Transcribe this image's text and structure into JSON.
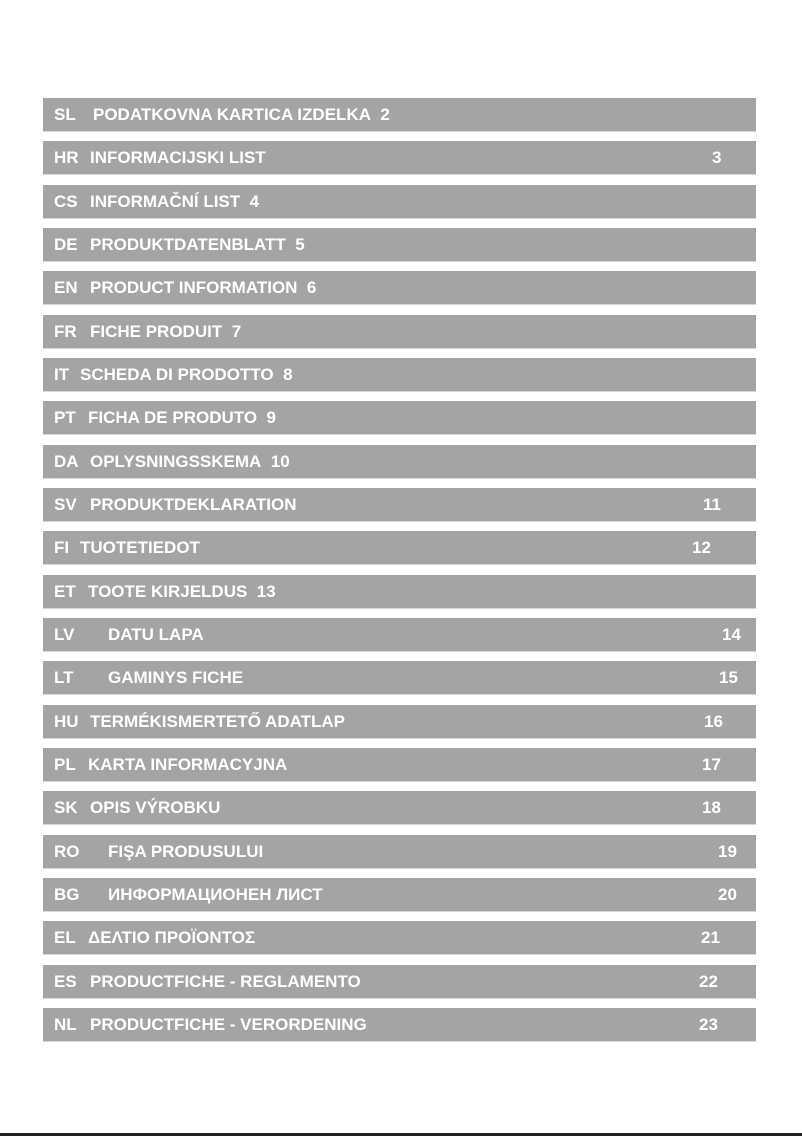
{
  "contents": [
    {
      "code": "SL",
      "title": "PODATKOVNA KARTICA IZDELKA",
      "page": "2"
    },
    {
      "code": "HR",
      "title": "INFORMACIJSKI LIST",
      "page": "3"
    },
    {
      "code": "CS",
      "title": "INFORMAČNÍ LIST",
      "page": "4"
    },
    {
      "code": "DE",
      "title": "PRODUKTDATENBLATT",
      "page": "5"
    },
    {
      "code": "EN",
      "title": "PRODUCT INFORMATION",
      "page": "6"
    },
    {
      "code": "FR",
      "title": "FICHE PRODUIT",
      "page": "7"
    },
    {
      "code": "IT",
      "title": "SCHEDA DI PRODOTTO",
      "page": "8"
    },
    {
      "code": "PT",
      "title": "FICHA DE PRODUTO",
      "page": "9"
    },
    {
      "code": "DA",
      "title": "OPLYSNINGSSKEMA",
      "page": "10"
    },
    {
      "code": "SV",
      "title": "PRODUKTDEKLARATION",
      "page": "11"
    },
    {
      "code": "FI",
      "title": "TUOTETIEDOT",
      "page": "12"
    },
    {
      "code": "ET",
      "title": "TOOTE KIRJELDUS",
      "page": "13"
    },
    {
      "code": "LV",
      "title": "DATU LAPA",
      "page": "14"
    },
    {
      "code": "LT",
      "title": "GAMINYS FICHE",
      "page": "15"
    },
    {
      "code": "HU",
      "title": "TERMÉKISMERTETŐ ADATLAP",
      "page": "16"
    },
    {
      "code": "PL",
      "title": "KARTA INFORMACYJNA",
      "page": "17"
    },
    {
      "code": "SK",
      "title": "OPIS VÝROBKU",
      "page": "18"
    },
    {
      "code": "RO",
      "title": "FIŞA PRODUSULUI",
      "page": "19"
    },
    {
      "code": "BG",
      "title": "ИНФОРМАЦИОНЕН ЛИСТ",
      "page": "20"
    },
    {
      "code": "EL",
      "title": "ΔΕΛΤΙΟ ΠΡΟΪΟΝΤΟΣ",
      "page": "21"
    },
    {
      "code": "ES",
      "title": "PRODUCTFICHE - REGLAMENTO",
      "page": "22"
    },
    {
      "code": "NL",
      "title": "PRODUCTFICHE - VERORDENING",
      "page": "23"
    }
  ]
}
